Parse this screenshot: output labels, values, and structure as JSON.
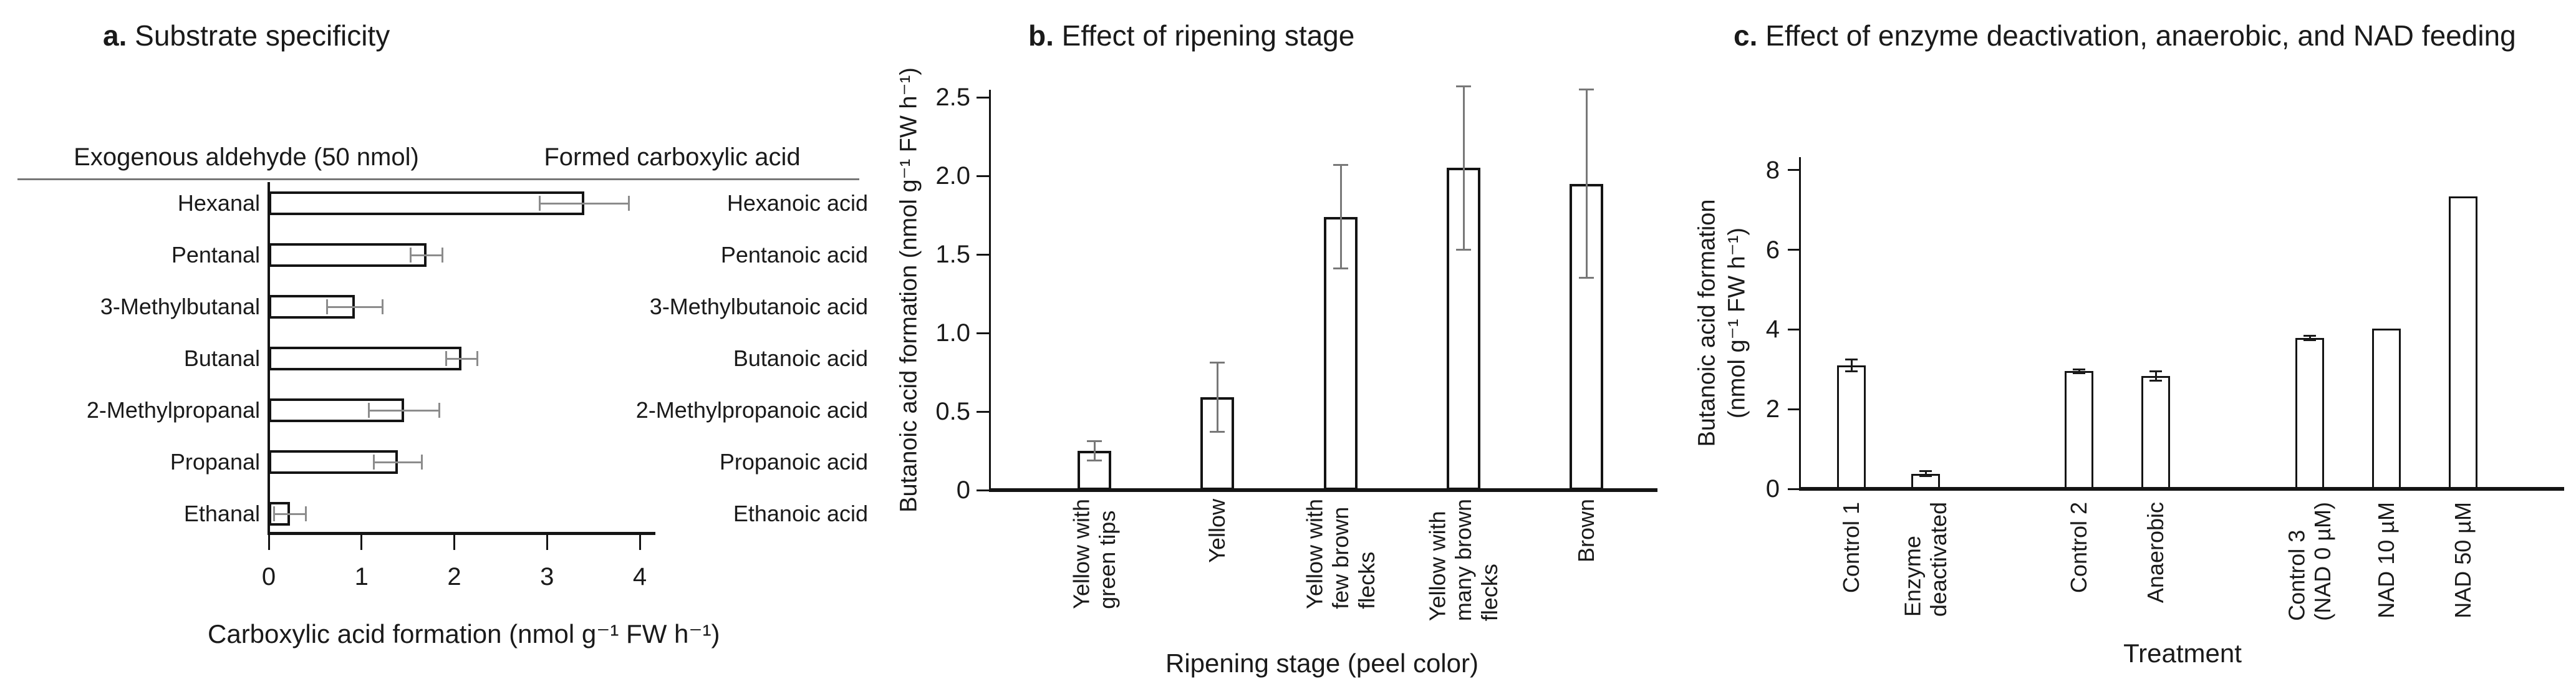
{
  "chart_data": [
    {
      "type": "bar",
      "orientation": "horizontal",
      "panel_label": "a.",
      "title": "Substrate specificity",
      "column_headers": {
        "left": "Exogenous aldehyde (50 nmol)",
        "right": "Formed carboxylic acid"
      },
      "categories": [
        "Hexanal",
        "Pentanal",
        "3-Methylbutanal",
        "Butanal",
        "2-Methylpropanal",
        "Propanal",
        "Ethanal"
      ],
      "formed_acids": [
        "Hexanoic acid",
        "Pentanoic acid",
        "3-Methylbutanoic acid",
        "Butanoic acid",
        "2-Methylpropanoic acid",
        "Propanoic acid",
        "Ethanoic acid"
      ],
      "values": [
        3.4,
        1.7,
        0.93,
        2.08,
        1.46,
        1.39,
        0.23
      ],
      "errors": [
        0.48,
        0.17,
        0.3,
        0.17,
        0.38,
        0.26,
        0.17
      ],
      "xlabel": "Carboxylic acid formation (nmol g⁻¹ FW h⁻¹)",
      "x_ticks": [
        "0",
        "1",
        "2",
        "3",
        "4"
      ],
      "xlim": [
        0,
        4
      ],
      "grid": false,
      "legend": null
    },
    {
      "type": "bar",
      "orientation": "vertical",
      "panel_label": "b.",
      "title": "Effect of ripening stage",
      "categories": [
        [
          "Yellow with",
          "green tips"
        ],
        [
          "Yellow"
        ],
        [
          "Yellow with",
          "few brown",
          "flecks"
        ],
        [
          "Yellow with",
          "many brown",
          "flecks"
        ],
        [
          "Brown"
        ]
      ],
      "values": [
        0.25,
        0.59,
        1.74,
        2.05,
        1.95
      ],
      "errors": [
        0.06,
        0.22,
        0.33,
        0.52,
        0.6
      ],
      "ylabel": "Butanoic acid formation (nmol g⁻¹ FW h⁻¹)",
      "xlabel": "Ripening stage (peel color)",
      "y_ticks": [
        "0",
        "0.5",
        "1.0",
        "1.5",
        "2.0",
        "2.5"
      ],
      "ylim": [
        0,
        2.5
      ],
      "grid": false,
      "legend": null
    },
    {
      "type": "bar",
      "orientation": "vertical",
      "panel_label": "c.",
      "title": "Effect of enzyme deactivation, anaerobic, and NAD feeding",
      "categories": [
        [
          "Control 1"
        ],
        [
          "Enzyme",
          "deactivated"
        ],
        [
          "Control 2"
        ],
        [
          "Anaerobic"
        ],
        [
          "Control 3",
          "(NAD 0 µM)"
        ],
        [
          "NAD 10 µM"
        ],
        [
          "NAD 50 µM"
        ]
      ],
      "values": [
        3.1,
        0.38,
        2.95,
        2.83,
        3.79,
        4.02,
        7.34
      ],
      "errors": [
        0.15,
        0.06,
        0.05,
        0.12,
        0.05,
        0,
        0
      ],
      "ylabel_lines": [
        "Butanoic acid formation",
        "(nmol g⁻¹ FW h⁻¹)"
      ],
      "xlabel": "Treatment",
      "y_ticks": [
        "0",
        "2",
        "4",
        "6",
        "8"
      ],
      "ylim": [
        0,
        8
      ],
      "grid": false,
      "legend": null
    }
  ]
}
